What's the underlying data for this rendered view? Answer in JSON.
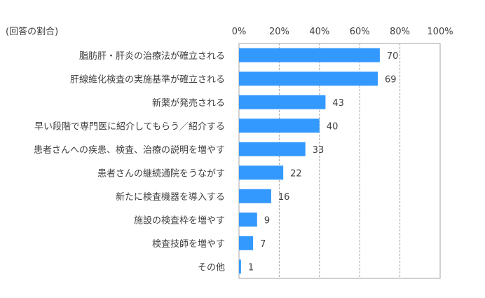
{
  "chart_data": {
    "type": "bar",
    "orientation": "horizontal",
    "unit_label": "(回答の割合)",
    "categories": [
      "脂肪肝・肝炎の治療法が確立される",
      "肝線維化検査の実施基準が確立される",
      "新薬が発売される",
      "早い段階で専門医に紹介してもらう／紹介する",
      "患者さんへの疾患、検査、治療の説明を増やす",
      "患者さんの継続通院をうながす",
      "新たに検査機器を導入する",
      "施設の検査枠を増やす",
      "検査技師を増やす",
      "その他"
    ],
    "values": [
      70,
      69,
      43,
      40,
      33,
      22,
      16,
      9,
      7,
      1
    ],
    "data_labels": [
      "70",
      "69",
      "43",
      "40",
      "33",
      "22",
      "16",
      "9",
      "7",
      "1"
    ],
    "x_ticks": [
      0,
      20,
      40,
      60,
      80,
      100
    ],
    "x_tick_labels": [
      "0%",
      "20%",
      "40%",
      "60%",
      "80%",
      "100%"
    ],
    "xlim": [
      0,
      100
    ],
    "grid": true,
    "legend": "none",
    "colors": {
      "bar": "#3399ff",
      "grid": "#a6a6a6",
      "axis": "#a6a6a6",
      "text": "#404040"
    }
  }
}
